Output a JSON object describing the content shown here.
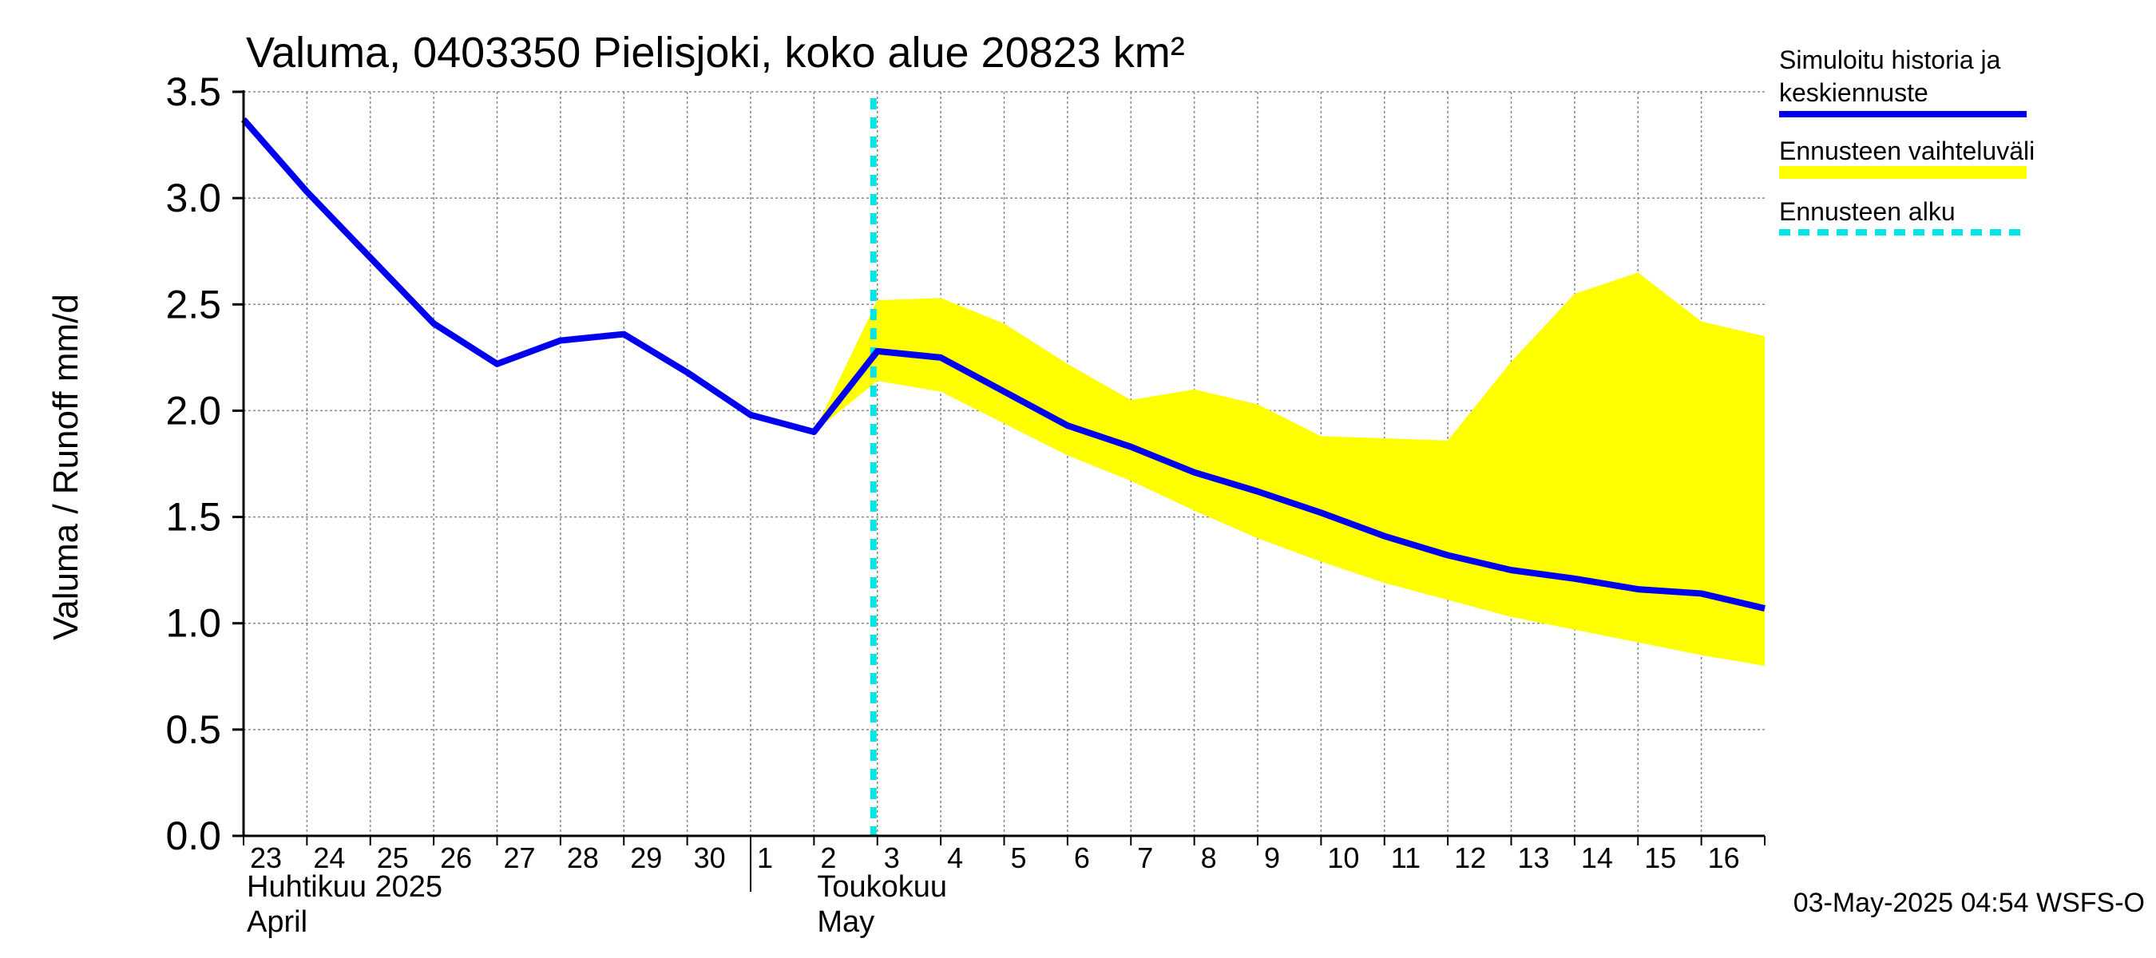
{
  "chart_data": {
    "type": "line",
    "title": "Valuma, 0403350 Pielisjoki, koko alue 20823 km²",
    "ylabel": "Valuma / Runoff     mm/d",
    "ylim": [
      0,
      3.5
    ],
    "yticks": [
      "0.0",
      "0.5",
      "1.0",
      "1.5",
      "2.0",
      "2.5",
      "3.0",
      "3.5"
    ],
    "x": [
      "2025-04-23",
      "2025-04-24",
      "2025-04-25",
      "2025-04-26",
      "2025-04-27",
      "2025-04-28",
      "2025-04-29",
      "2025-04-30",
      "2025-05-01",
      "2025-05-02",
      "2025-05-03",
      "2025-05-04",
      "2025-05-05",
      "2025-05-06",
      "2025-05-07",
      "2025-05-08",
      "2025-05-09",
      "2025-05-10",
      "2025-05-11",
      "2025-05-12",
      "2025-05-13",
      "2025-05-14",
      "2025-05-15",
      "2025-05-16",
      "2025-05-17"
    ],
    "xtick_labels": [
      "23",
      "24",
      "25",
      "26",
      "27",
      "28",
      "29",
      "30",
      "1",
      "2",
      "3",
      "4",
      "5",
      "6",
      "7",
      "8",
      "9",
      "10",
      "11",
      "12",
      "13",
      "14",
      "15",
      "16"
    ],
    "month_labels": [
      {
        "line1": "Huhtikuu  2025",
        "line2": "April"
      },
      {
        "line1": "Toukokuu",
        "line2": "May"
      }
    ],
    "forecast_start": "2025-05-03",
    "series": [
      {
        "name": "Simuloitu historia ja keskiennuste",
        "color": "#0000ee",
        "values": [
          3.37,
          3.03,
          2.72,
          2.41,
          2.22,
          2.33,
          2.36,
          2.18,
          1.98,
          1.9,
          2.28,
          2.25,
          2.09,
          1.93,
          1.83,
          1.71,
          1.62,
          1.52,
          1.41,
          1.32,
          1.25,
          1.21,
          1.16,
          1.14,
          1.07
        ]
      }
    ],
    "band": {
      "name": "Ennusteen vaihteluväli",
      "color": "#ffff00",
      "start_index": 9,
      "upper": [
        1.9,
        2.52,
        2.53,
        2.41,
        2.22,
        2.05,
        2.1,
        2.03,
        1.88,
        1.87,
        1.86,
        2.23,
        2.55,
        2.65,
        2.42,
        2.35
      ],
      "lower": [
        1.9,
        2.14,
        2.09,
        1.94,
        1.79,
        1.67,
        1.53,
        1.4,
        1.29,
        1.19,
        1.11,
        1.03,
        0.97,
        0.91,
        0.85,
        0.8
      ]
    },
    "legend": [
      {
        "label": "Simuloitu historia ja keskiennuste",
        "color": "#0000ee",
        "style": "solid"
      },
      {
        "label": "Ennusteen vaihteluväli",
        "color": "#ffff00",
        "style": "band"
      },
      {
        "label": "Ennusteen alku",
        "color": "#00e5e5",
        "style": "dashed"
      }
    ],
    "legend_position": "right",
    "grid": true
  },
  "footer": "03-May-2025 04:54 WSFS-O"
}
